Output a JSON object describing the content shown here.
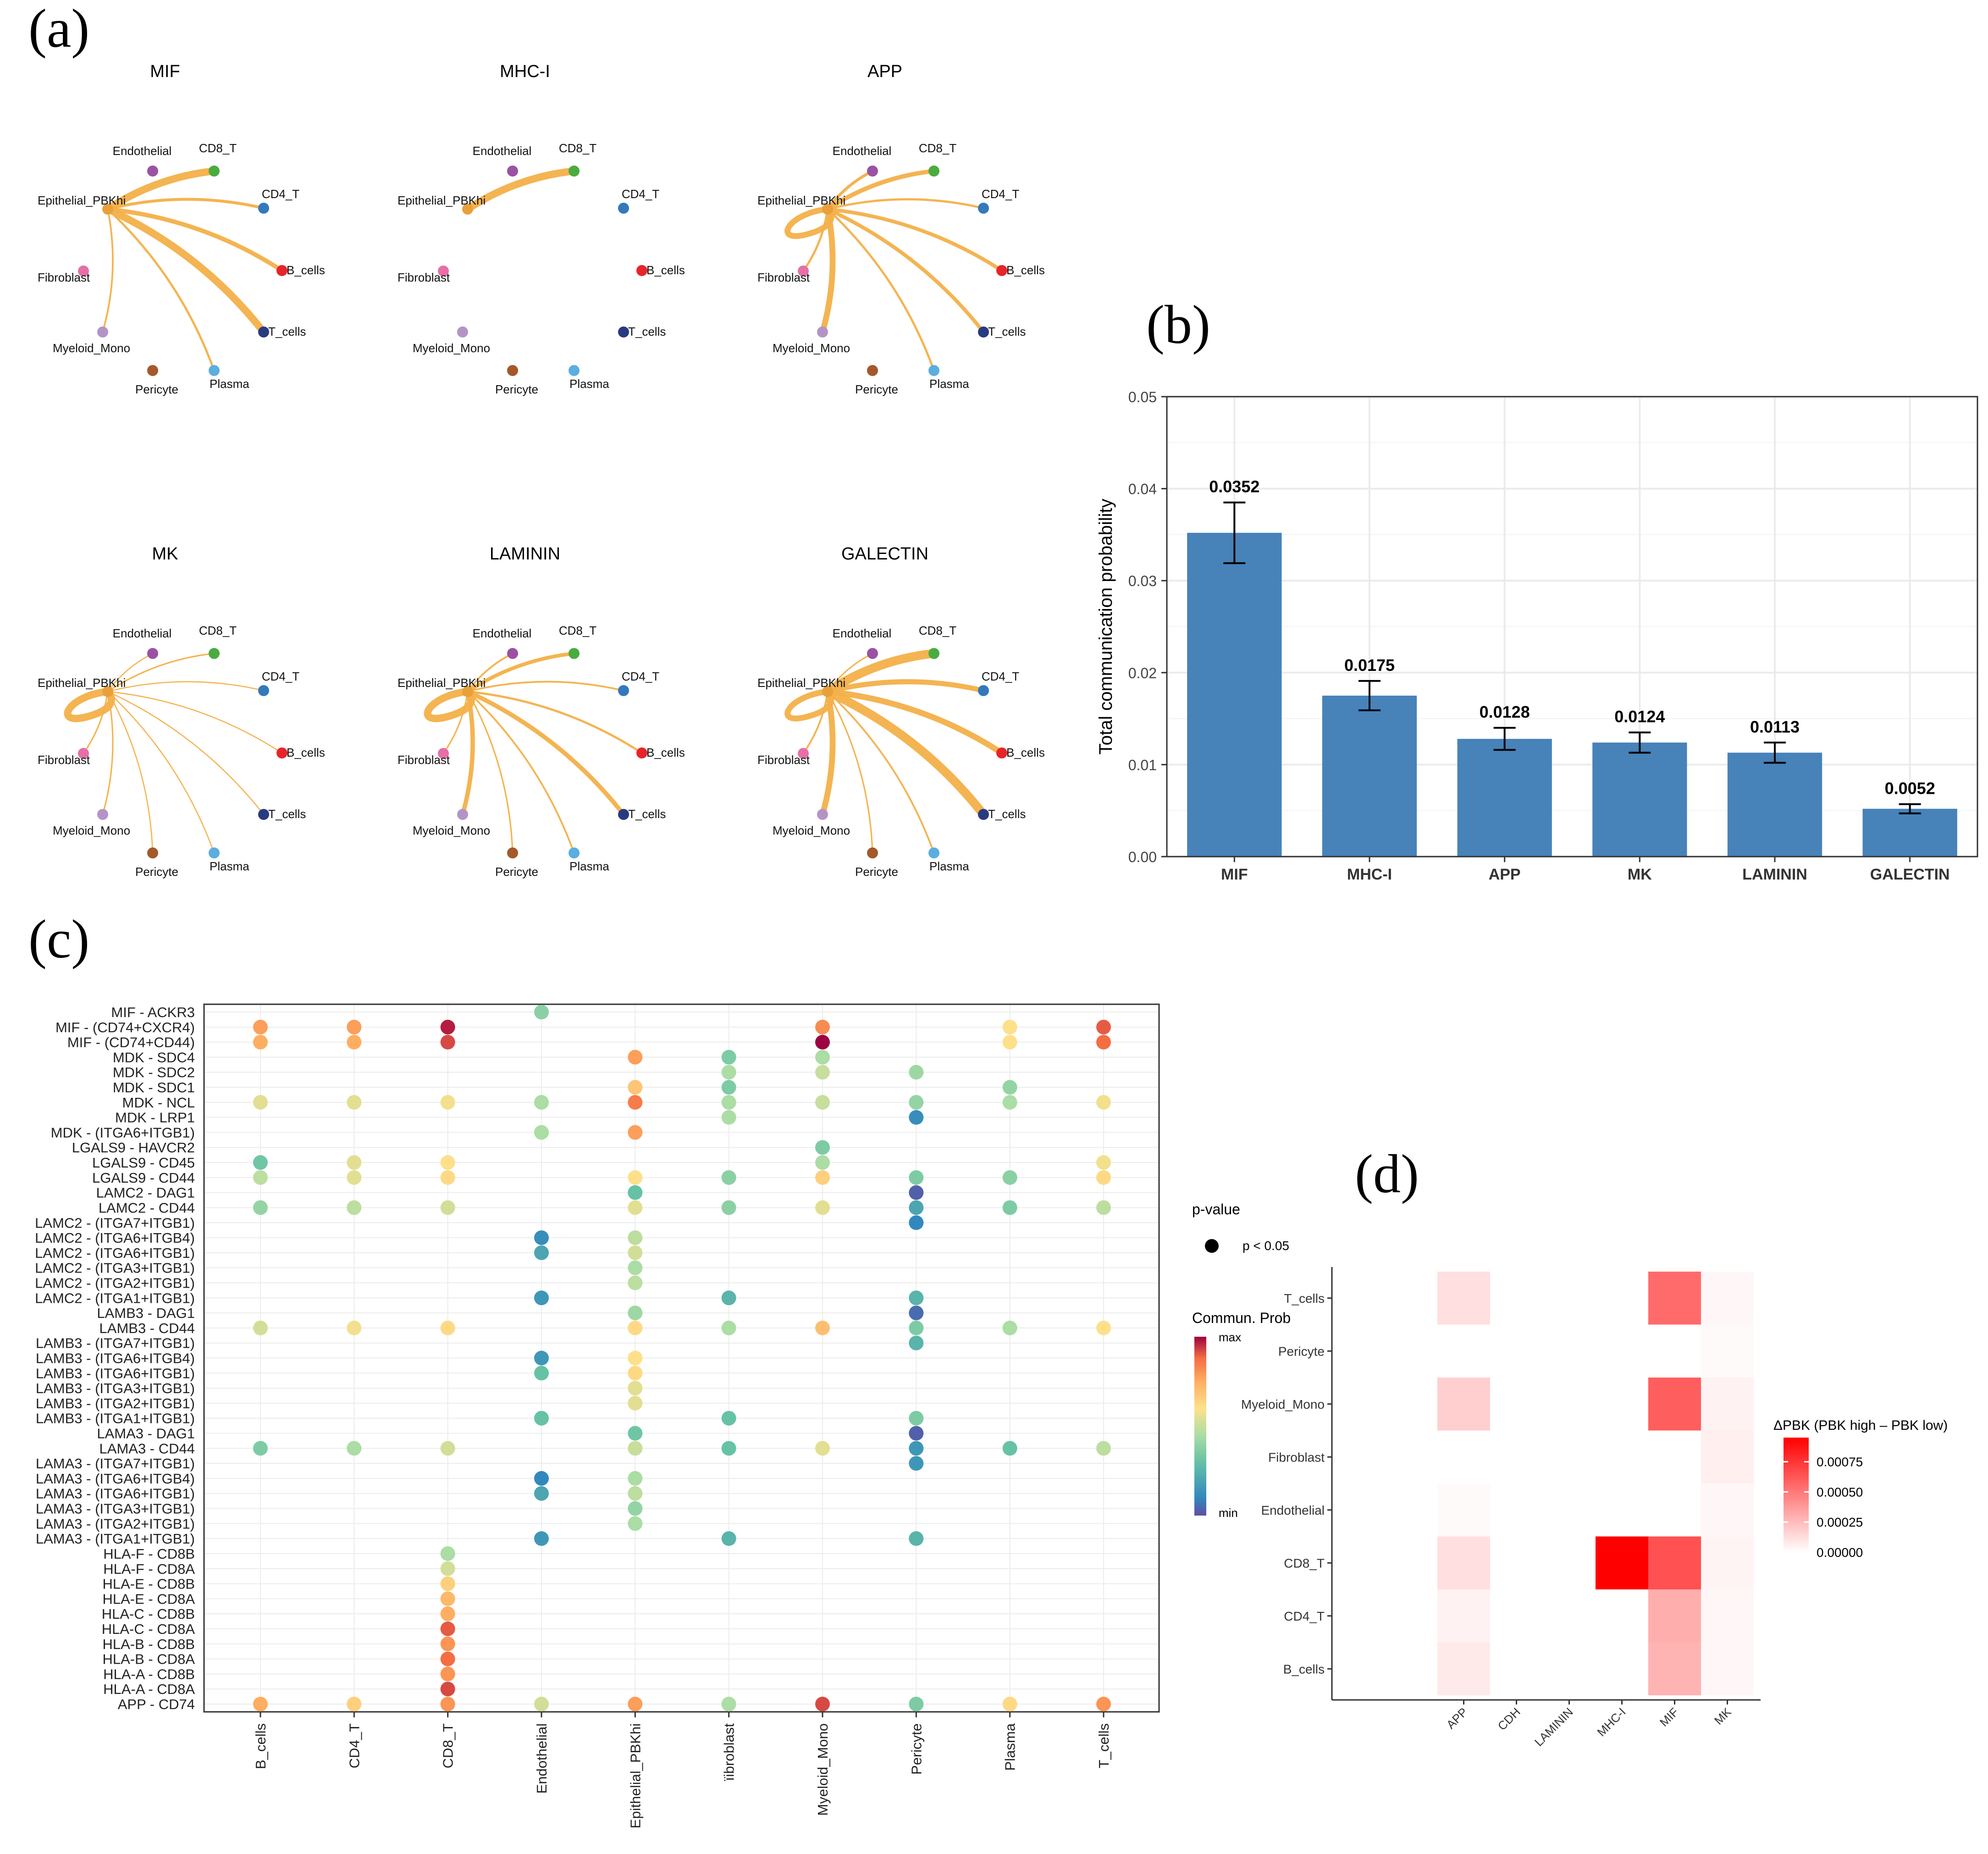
{
  "panel_labels": [
    "(a)",
    "(b)",
    "(c)",
    "(d)"
  ],
  "chart_data": [
    {
      "type": "network",
      "panel": "(a)",
      "nodes": [
        "Endothelial",
        "CD8_T",
        "CD4_T",
        "Epithelial_PBKhi",
        "Fibroblast",
        "B_cells",
        "T_cells",
        "Myeloid_Mono",
        "Pericyte",
        "Plasma"
      ],
      "node_colors": {
        "Endothelial": "#9b52a3",
        "CD8_T": "#4aac3f",
        "CD4_T": "#3479bb",
        "Epithelial_PBKhi": "#e9a03a",
        "Fibroblast": "#e66fa8",
        "B_cells": "#e8242b",
        "T_cells": "#283b80",
        "Myeloid_Mono": "#b494c6",
        "Pericyte": "#a3592a",
        "Plasma": "#5aaee0"
      },
      "source": "Epithelial_PBKhi",
      "networks": [
        {
          "title": "MIF",
          "edges": {
            "CD8_T": 5,
            "Endothelial": 0,
            "CD4_T": 2,
            "B_cells": 3,
            "T_cells": 5,
            "Plasma": 1.5,
            "Myeloid_Mono": 1.2,
            "Pericyte": 0,
            "Fibroblast": 0,
            "self": 0
          }
        },
        {
          "title": "MHC-I",
          "edges": {
            "CD8_T": 5,
            "Endothelial": 0,
            "CD4_T": 0,
            "B_cells": 0,
            "T_cells": 0,
            "Plasma": 0,
            "Myeloid_Mono": 0,
            "Pericyte": 0,
            "Fibroblast": 0,
            "self": 0
          }
        },
        {
          "title": "APP",
          "edges": {
            "CD8_T": 3,
            "Endothelial": 2,
            "CD4_T": 1.5,
            "B_cells": 2.5,
            "T_cells": 2.5,
            "Plasma": 1.5,
            "Myeloid_Mono": 4,
            "Pericyte": 0,
            "Fibroblast": 1.5,
            "self": 4
          }
        },
        {
          "title": "MK",
          "edges": {
            "CD8_T": 1,
            "Endothelial": 0.8,
            "CD4_T": 0.8,
            "B_cells": 0.8,
            "T_cells": 0.8,
            "Plasma": 0.8,
            "Myeloid_Mono": 1,
            "Pericyte": 0.8,
            "Fibroblast": 1,
            "self": 5
          }
        },
        {
          "title": "LAMININ",
          "edges": {
            "CD8_T": 2.5,
            "Endothelial": 1.2,
            "CD4_T": 1.2,
            "B_cells": 1.5,
            "T_cells": 3,
            "Plasma": 1.2,
            "Myeloid_Mono": 3,
            "Pericyte": 1,
            "Fibroblast": 1,
            "self": 5
          }
        },
        {
          "title": "GALECTIN",
          "edges": {
            "CD8_T": 6,
            "Endothelial": 1,
            "CD4_T": 3.5,
            "B_cells": 4,
            "T_cells": 6,
            "Plasma": 1.2,
            "Myeloid_Mono": 4,
            "Pericyte": 1,
            "Fibroblast": 1.2,
            "self": 4
          }
        }
      ]
    },
    {
      "type": "bar",
      "panel": "(b)",
      "categories": [
        "MIF",
        "MHC-I",
        "APP",
        "MK",
        "LAMININ",
        "GALECTIN"
      ],
      "values": [
        0.0352,
        0.0175,
        0.0128,
        0.0124,
        0.0113,
        0.0052
      ],
      "value_labels": [
        "0.0352",
        "0.0175",
        "0.0128",
        "0.0124",
        "0.0113",
        "0.0052"
      ],
      "errors": [
        0.0033,
        0.0016,
        0.0012,
        0.0011,
        0.0011,
        0.0005
      ],
      "ylabel": "Total communication probability",
      "ylim": [
        0,
        0.05
      ],
      "yticks": [
        "0.00",
        "0.01",
        "0.02",
        "0.03",
        "0.04",
        "0.05"
      ],
      "color": "#4782b9"
    },
    {
      "type": "dotplot",
      "panel": "(c)",
      "rows": [
        "MIF - ACKR3",
        "MIF - (CD74+CXCR4)",
        "MIF - (CD74+CD44)",
        "MDK - SDC4",
        "MDK - SDC2",
        "MDK - SDC1",
        "MDK - NCL",
        "MDK - LRP1",
        "MDK - (ITGA6+ITGB1)",
        "LGALS9 - HAVCR2",
        "LGALS9 - CD45",
        "LGALS9 - CD44",
        "LAMC2 - DAG1",
        "LAMC2 - CD44",
        "LAMC2 - (ITGA7+ITGB1)",
        "LAMC2 - (ITGA6+ITGB4)",
        "LAMC2 - (ITGA6+ITGB1)",
        "LAMC2 - (ITGA3+ITGB1)",
        "LAMC2 - (ITGA2+ITGB1)",
        "LAMC2 - (ITGA1+ITGB1)",
        "LAMB3 - DAG1",
        "LAMB3 - CD44",
        "LAMB3 - (ITGA7+ITGB1)",
        "LAMB3 - (ITGA6+ITGB4)",
        "LAMB3 - (ITGA6+ITGB1)",
        "LAMB3 - (ITGA3+ITGB1)",
        "LAMB3 - (ITGA2+ITGB1)",
        "LAMB3 - (ITGA1+ITGB1)",
        "LAMA3 - DAG1",
        "LAMA3 - CD44",
        "LAMA3 - (ITGA7+ITGB1)",
        "LAMA3 - (ITGA6+ITGB4)",
        "LAMA3 - (ITGA6+ITGB1)",
        "LAMA3 - (ITGA3+ITGB1)",
        "LAMA3 - (ITGA2+ITGB1)",
        "LAMA3 - (ITGA1+ITGB1)",
        "HLA-F - CD8B",
        "HLA-F - CD8A",
        "HLA-E - CD8B",
        "HLA-E - CD8A",
        "HLA-C - CD8B",
        "HLA-C - CD8A",
        "HLA-B - CD8B",
        "HLA-B - CD8A",
        "HLA-A - CD8B",
        "HLA-A - CD8A",
        "APP - CD74"
      ],
      "columns": [
        "B_cells",
        "CD4_T",
        "CD8_T",
        "Endothelial",
        "Epithelial_PBKhi",
        "Fibroblast",
        "Myeloid_Mono",
        "Pericyte",
        "Plasma",
        "T_cells"
      ],
      "columns_shown": [
        "B_cells",
        "CD4_T",
        "CD8_T",
        "Endothelial",
        "Epithelial_PBKhi",
        "ïibroblast",
        "Myeloid_Mono",
        "Pericyte",
        "Plasma",
        "T_cells"
      ],
      "value_scale": "0 = min, 1 = max (Commun. Prob.)",
      "points": [
        [
          0,
          3,
          0.38
        ],
        [
          1,
          0,
          0.78
        ],
        [
          1,
          1,
          0.78
        ],
        [
          1,
          2,
          0.97
        ],
        [
          1,
          6,
          0.82
        ],
        [
          1,
          8,
          0.6
        ],
        [
          1,
          9,
          0.9
        ],
        [
          2,
          0,
          0.75
        ],
        [
          2,
          1,
          0.75
        ],
        [
          2,
          2,
          0.92
        ],
        [
          2,
          6,
          1.0
        ],
        [
          2,
          8,
          0.6
        ],
        [
          2,
          9,
          0.88
        ],
        [
          3,
          4,
          0.78
        ],
        [
          3,
          5,
          0.35
        ],
        [
          3,
          6,
          0.45
        ],
        [
          4,
          5,
          0.45
        ],
        [
          4,
          6,
          0.5
        ],
        [
          4,
          7,
          0.42
        ],
        [
          5,
          4,
          0.68
        ],
        [
          5,
          5,
          0.35
        ],
        [
          5,
          8,
          0.4
        ],
        [
          6,
          0,
          0.55
        ],
        [
          6,
          1,
          0.55
        ],
        [
          6,
          2,
          0.58
        ],
        [
          6,
          3,
          0.45
        ],
        [
          6,
          4,
          0.85
        ],
        [
          6,
          5,
          0.45
        ],
        [
          6,
          6,
          0.5
        ],
        [
          6,
          7,
          0.4
        ],
        [
          6,
          8,
          0.45
        ],
        [
          6,
          9,
          0.58
        ],
        [
          7,
          5,
          0.45
        ],
        [
          7,
          7,
          0.12
        ],
        [
          8,
          3,
          0.45
        ],
        [
          8,
          4,
          0.78
        ],
        [
          9,
          6,
          0.35
        ],
        [
          10,
          0,
          0.32
        ],
        [
          10,
          1,
          0.55
        ],
        [
          10,
          2,
          0.6
        ],
        [
          10,
          6,
          0.45
        ],
        [
          10,
          9,
          0.58
        ],
        [
          11,
          0,
          0.48
        ],
        [
          11,
          1,
          0.55
        ],
        [
          11,
          2,
          0.62
        ],
        [
          11,
          4,
          0.6
        ],
        [
          11,
          5,
          0.38
        ],
        [
          11,
          6,
          0.65
        ],
        [
          11,
          7,
          0.35
        ],
        [
          11,
          8,
          0.38
        ],
        [
          11,
          9,
          0.62
        ],
        [
          12,
          4,
          0.3
        ],
        [
          12,
          7,
          0.03
        ],
        [
          13,
          0,
          0.4
        ],
        [
          13,
          1,
          0.48
        ],
        [
          13,
          2,
          0.52
        ],
        [
          13,
          4,
          0.55
        ],
        [
          13,
          5,
          0.38
        ],
        [
          13,
          6,
          0.55
        ],
        [
          13,
          7,
          0.2
        ],
        [
          13,
          8,
          0.35
        ],
        [
          13,
          9,
          0.48
        ],
        [
          14,
          7,
          0.1
        ],
        [
          15,
          3,
          0.12
        ],
        [
          15,
          4,
          0.48
        ],
        [
          16,
          3,
          0.2
        ],
        [
          16,
          4,
          0.52
        ],
        [
          17,
          4,
          0.45
        ],
        [
          18,
          4,
          0.48
        ],
        [
          19,
          3,
          0.15
        ],
        [
          19,
          5,
          0.25
        ],
        [
          19,
          7,
          0.25
        ],
        [
          20,
          4,
          0.42
        ],
        [
          20,
          7,
          0.05
        ],
        [
          21,
          0,
          0.52
        ],
        [
          21,
          1,
          0.58
        ],
        [
          21,
          2,
          0.62
        ],
        [
          21,
          4,
          0.62
        ],
        [
          21,
          5,
          0.45
        ],
        [
          21,
          6,
          0.7
        ],
        [
          21,
          7,
          0.35
        ],
        [
          21,
          8,
          0.45
        ],
        [
          21,
          9,
          0.6
        ],
        [
          22,
          7,
          0.25
        ],
        [
          23,
          3,
          0.15
        ],
        [
          23,
          4,
          0.6
        ],
        [
          24,
          3,
          0.3
        ],
        [
          24,
          4,
          0.62
        ],
        [
          25,
          4,
          0.55
        ],
        [
          26,
          4,
          0.55
        ],
        [
          27,
          3,
          0.3
        ],
        [
          27,
          5,
          0.3
        ],
        [
          27,
          7,
          0.35
        ],
        [
          28,
          4,
          0.32
        ],
        [
          28,
          7,
          0.03
        ],
        [
          29,
          0,
          0.35
        ],
        [
          29,
          1,
          0.45
        ],
        [
          29,
          2,
          0.52
        ],
        [
          29,
          4,
          0.5
        ],
        [
          29,
          5,
          0.3
        ],
        [
          29,
          6,
          0.55
        ],
        [
          29,
          7,
          0.15
        ],
        [
          29,
          8,
          0.3
        ],
        [
          29,
          9,
          0.48
        ],
        [
          30,
          7,
          0.15
        ],
        [
          31,
          3,
          0.1
        ],
        [
          31,
          4,
          0.45
        ],
        [
          32,
          3,
          0.2
        ],
        [
          32,
          4,
          0.48
        ],
        [
          33,
          4,
          0.4
        ],
        [
          34,
          4,
          0.45
        ],
        [
          35,
          3,
          0.15
        ],
        [
          35,
          5,
          0.25
        ],
        [
          35,
          7,
          0.25
        ],
        [
          36,
          2,
          0.45
        ],
        [
          37,
          2,
          0.52
        ],
        [
          38,
          2,
          0.65
        ],
        [
          39,
          2,
          0.72
        ],
        [
          40,
          2,
          0.75
        ],
        [
          41,
          2,
          0.9
        ],
        [
          42,
          2,
          0.8
        ],
        [
          43,
          2,
          0.88
        ],
        [
          44,
          2,
          0.8
        ],
        [
          45,
          2,
          0.92
        ],
        [
          46,
          0,
          0.75
        ],
        [
          46,
          1,
          0.65
        ],
        [
          46,
          2,
          0.8
        ],
        [
          46,
          3,
          0.52
        ],
        [
          46,
          4,
          0.78
        ],
        [
          46,
          5,
          0.45
        ],
        [
          46,
          6,
          0.92
        ],
        [
          46,
          7,
          0.35
        ],
        [
          46,
          8,
          0.62
        ],
        [
          46,
          9,
          0.8
        ]
      ],
      "legend": {
        "pvalue_title": "p-value",
        "pvalue_item": "p < 0.05",
        "color_title": "Commun. Prob",
        "color_max": "max",
        "color_min": "min"
      }
    },
    {
      "type": "heatmap",
      "panel": "(d)",
      "x": [
        "APP",
        "CDH",
        "LAMININ",
        "MHC-I",
        "MIF",
        "MK"
      ],
      "y": [
        "T_cells",
        "Pericyte",
        "Myeloid_Mono",
        "Fibroblast",
        "Endothelial",
        "CD8_T",
        "CD4_T",
        "B_cells"
      ],
      "values": [
        [
          0.00012,
          0,
          0,
          0,
          0.00055,
          3e-05
        ],
        [
          0,
          0,
          0,
          0,
          0,
          2e-05
        ],
        [
          0.00018,
          0,
          0,
          0,
          0.0006,
          5e-05
        ],
        [
          0,
          0,
          0,
          0,
          0,
          6e-05
        ],
        [
          2e-05,
          0,
          0,
          0,
          0,
          3e-05
        ],
        [
          0.00012,
          0,
          0,
          0.00095,
          0.00065,
          4e-05
        ],
        [
          5e-05,
          0,
          0,
          0,
          0.0003,
          3e-05
        ],
        [
          8e-05,
          0,
          0,
          0,
          0.00028,
          3e-05
        ]
      ],
      "legend_title": "ΔPBK (PBK high – PBK low)",
      "legend_ticks": [
        "0.00075",
        "0.00050",
        "0.00025",
        "0.00000"
      ],
      "vmax": 0.00095
    }
  ]
}
